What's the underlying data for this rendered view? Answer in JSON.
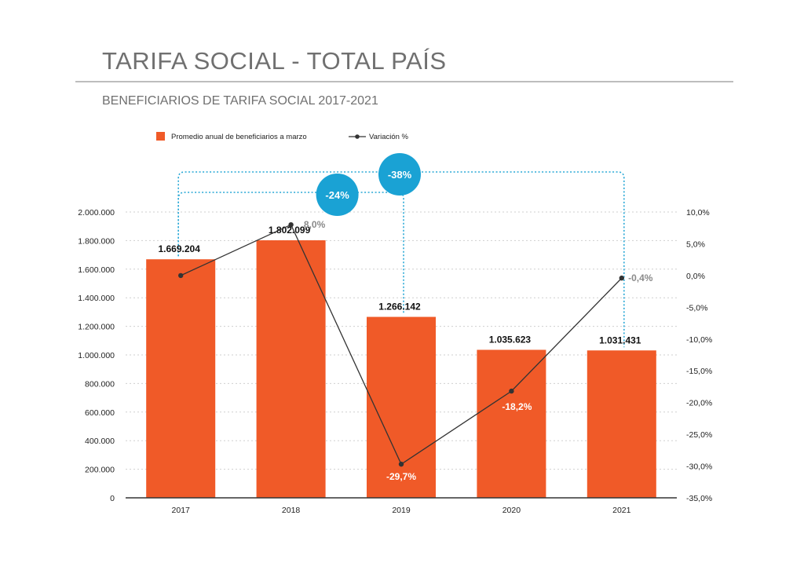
{
  "page": {
    "title": "TARIFA SOCIAL - TOTAL PAÍS",
    "subtitle": "BENEFICIARIOS DE TARIFA SOCIAL 2017-2021"
  },
  "colors": {
    "bar": "#f05a28",
    "line": "#333333",
    "bracket": "#29a8d6",
    "badge": "#1aa2d4",
    "grid": "#cfcfcf",
    "axis": "#333333",
    "pct_label_grey": "#8a8a8a",
    "pct_label_white": "#ffffff"
  },
  "chart_data": {
    "type": "bar",
    "categories": [
      "2017",
      "2018",
      "2019",
      "2020",
      "2021"
    ],
    "series": [
      {
        "name": "Promedio anual de beneficiarios a marzo",
        "type": "bar",
        "axis": "left",
        "values": [
          1669204,
          1802099,
          1266142,
          1035623,
          1031431
        ],
        "labels": [
          "1.669.204",
          "1.802.099",
          "1.266.142",
          "1.035.623",
          "1.031.431"
        ]
      },
      {
        "name": "Variación %",
        "type": "line",
        "axis": "right",
        "values": [
          0.0,
          8.0,
          -29.7,
          -18.2,
          -0.4
        ],
        "labels": [
          "",
          "8,0%",
          "-29,7%",
          "-18,2%",
          "-0,4%"
        ]
      }
    ],
    "y_left": {
      "lim": [
        0,
        2000000
      ],
      "ticks": [
        0,
        200000,
        400000,
        600000,
        800000,
        1000000,
        1200000,
        1400000,
        1600000,
        1800000,
        2000000
      ],
      "tick_labels": [
        "0",
        "200.000",
        "400.000",
        "600.000",
        "800.000",
        "1.000.000",
        "1.200.000",
        "1.400.000",
        "1.600.000",
        "1.800.000",
        "2.000.000"
      ]
    },
    "y_right": {
      "lim": [
        -35,
        10
      ],
      "ticks": [
        10,
        5,
        0,
        -5,
        -10,
        -15,
        -20,
        -25,
        -30,
        -35
      ],
      "tick_labels": [
        "10,0%",
        "5,0%",
        "0,0%",
        "-5,0%",
        "-10,0%",
        "-15,0%",
        "-20,0%",
        "-25,0%",
        "-30,0%",
        "-35,0%"
      ]
    },
    "grid": true,
    "legend": "top-left",
    "annotations": [
      {
        "label": "-24%",
        "from": "2017",
        "to": "2019"
      },
      {
        "label": "-38%",
        "from": "2017",
        "to": "2021"
      }
    ]
  }
}
